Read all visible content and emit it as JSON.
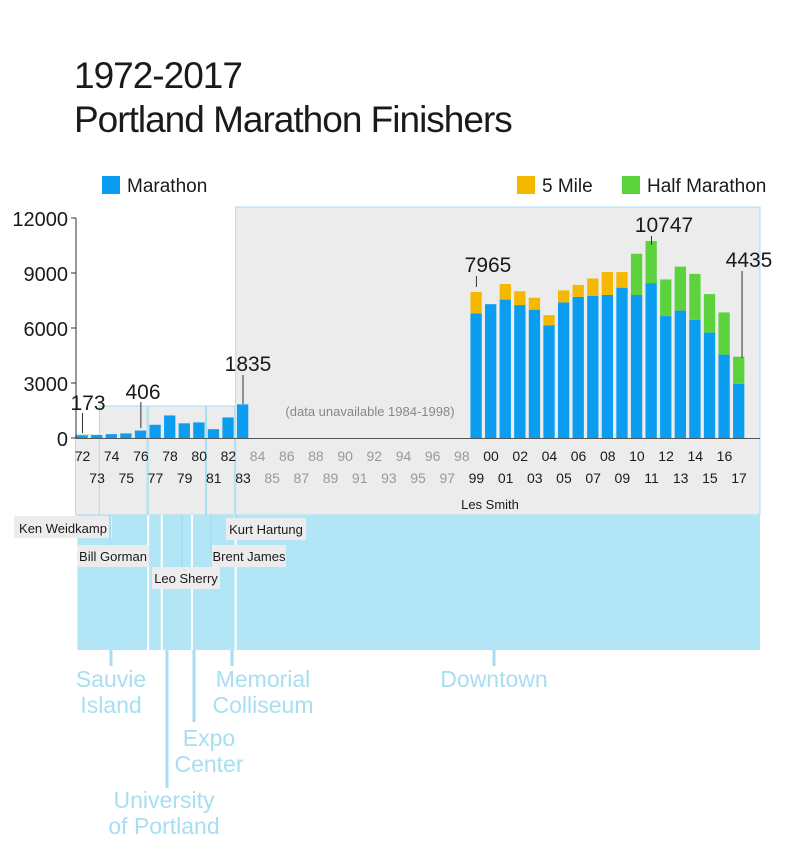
{
  "title": {
    "line1": "1972-2017",
    "line2": "Portland Marathon Finishers"
  },
  "colors": {
    "marathon": "#0a9df0",
    "five_mile": "#f5b800",
    "half_marathon": "#5cd33c",
    "era_fill": "#ececec",
    "era_border": "#a8def2",
    "location_fill": "#b2e6f6",
    "location_text": "#a8def2",
    "missing_year_text": "#999999"
  },
  "chart_data": {
    "type": "bar",
    "stacked": true,
    "title": "1972-2017 Portland Marathon Finishers",
    "xlabel": "",
    "ylabel": "",
    "ylim": [
      0,
      12000
    ],
    "yticks": [
      0,
      3000,
      6000,
      9000,
      12000
    ],
    "ytick_labels": [
      "0",
      "3000",
      "6000",
      "9000",
      "12000"
    ],
    "grid": false,
    "legend": "top",
    "legend_items": [
      {
        "name": "Marathon",
        "color": "#0a9df0"
      },
      {
        "name": "5 Mile",
        "color": "#f5b800"
      },
      {
        "name": "Half Marathon",
        "color": "#5cd33c"
      }
    ],
    "year_labels": [
      "72",
      "73",
      "74",
      "75",
      "76",
      "77",
      "78",
      "79",
      "80",
      "81",
      "82",
      "83",
      "84",
      "85",
      "86",
      "87",
      "88",
      "89",
      "90",
      "91",
      "92",
      "93",
      "94",
      "95",
      "96",
      "97",
      "98",
      "99",
      "00",
      "01",
      "02",
      "03",
      "04",
      "05",
      "06",
      "07",
      "08",
      "09",
      "10",
      "11",
      "12",
      "13",
      "14",
      "15",
      "16",
      "17"
    ],
    "categories": [
      1972,
      1973,
      1974,
      1975,
      1976,
      1977,
      1978,
      1979,
      1980,
      1981,
      1982,
      1983,
      1984,
      1985,
      1986,
      1987,
      1988,
      1989,
      1990,
      1991,
      1992,
      1993,
      1994,
      1995,
      1996,
      1997,
      1998,
      1999,
      2000,
      2001,
      2002,
      2003,
      2004,
      2005,
      2006,
      2007,
      2008,
      2009,
      2010,
      2011,
      2012,
      2013,
      2014,
      2015,
      2016,
      2017
    ],
    "series": [
      {
        "name": "Marathon",
        "values": [
          130,
          160,
          210,
          250,
          406,
          720,
          1230,
          800,
          850,
          480,
          1120,
          1835,
          null,
          null,
          null,
          null,
          null,
          null,
          null,
          null,
          null,
          null,
          null,
          null,
          null,
          null,
          null,
          6800,
          7300,
          7550,
          7250,
          7000,
          6150,
          7400,
          7700,
          7750,
          7800,
          8200,
          7800,
          8450,
          6650,
          6950,
          6450,
          5750,
          4550,
          2950
        ]
      },
      {
        "name": "5 Mile",
        "values": [
          0,
          0,
          0,
          0,
          0,
          0,
          0,
          0,
          0,
          0,
          0,
          0,
          null,
          null,
          null,
          null,
          null,
          null,
          null,
          null,
          null,
          null,
          null,
          null,
          null,
          null,
          null,
          1165,
          0,
          850,
          750,
          650,
          550,
          650,
          650,
          950,
          1250,
          850,
          0,
          0,
          0,
          0,
          0,
          0,
          0,
          0
        ]
      },
      {
        "name": "Half Marathon",
        "values": [
          43,
          0,
          0,
          0,
          0,
          0,
          0,
          0,
          0,
          0,
          0,
          0,
          null,
          null,
          null,
          null,
          null,
          null,
          null,
          null,
          null,
          null,
          null,
          null,
          null,
          null,
          null,
          0,
          0,
          0,
          0,
          0,
          0,
          0,
          0,
          0,
          0,
          0,
          2250,
          2297,
          2000,
          2400,
          2500,
          2100,
          2300,
          1485
        ]
      }
    ],
    "annotations": [
      {
        "label": "173",
        "year": 1972
      },
      {
        "label": "406",
        "year": 1976
      },
      {
        "label": "1835",
        "year": 1983
      },
      {
        "label": "7965",
        "year": 1999
      },
      {
        "label": "10747",
        "year": 2011
      },
      {
        "label": "4435",
        "year": 2017
      }
    ],
    "gap_note": "(data unavailable 1984-1998)",
    "directors": [
      {
        "name": "Ken Weidkamp",
        "from": 1972,
        "to": 1972
      },
      {
        "name": "Bill Gorman",
        "from": 1973,
        "to": 1976
      },
      {
        "name": "Leo Sherry",
        "from": 1977,
        "to": 1980
      },
      {
        "name": "Brent James",
        "from": 1981,
        "to": 1982
      },
      {
        "name": "Kurt Hartung",
        "from": 1982,
        "to": 1982
      },
      {
        "name": "Les Smith",
        "from": 1983,
        "to": 2017
      }
    ],
    "locations": [
      {
        "lines": [
          "Sauvie",
          "Island"
        ],
        "from": 1972,
        "to": 1976
      },
      {
        "lines": [
          "University",
          "of Portland"
        ],
        "from": 1977,
        "to": 1977
      },
      {
        "lines": [
          "Expo",
          "Center"
        ],
        "from": 1978,
        "to": 1979
      },
      {
        "lines": [
          "Memorial",
          "Colliseum"
        ],
        "from": 1980,
        "to": 1982
      },
      {
        "lines": [
          "Downtown"
        ],
        "from": 1983,
        "to": 2017
      }
    ]
  }
}
